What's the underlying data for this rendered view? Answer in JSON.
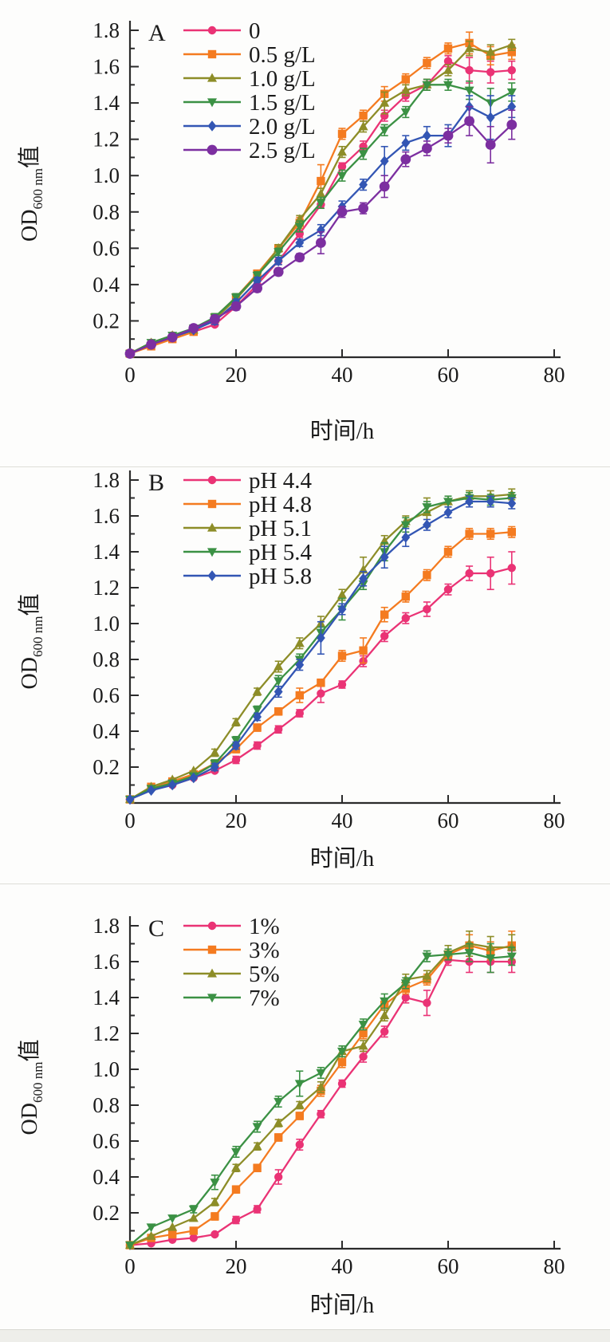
{
  "figure": {
    "type": "scientific-growth-curves",
    "x_label": "时间/h",
    "y_label_main": "OD",
    "y_label_sub": "600 nm",
    "y_label_tail": "值",
    "x_tick_labels": [
      "0",
      "20",
      "40",
      "60",
      "80"
    ],
    "y_tick_labels": [
      "0.2",
      "0.4",
      "0.6",
      "0.8",
      "1.0",
      "1.2",
      "1.4",
      "1.6",
      "1.8"
    ]
  },
  "colors": {
    "pink": "#ea3375",
    "orange": "#f47b20",
    "olive": "#8d8d28",
    "green": "#3b9144",
    "blue": "#3356b4",
    "purple": "#7c2fa0",
    "axis": "#2b2b2b"
  },
  "chart_data": [
    {
      "type": "line",
      "panel_label": "A",
      "xlabel": "时间/h",
      "ylabel": "OD600 nm值",
      "xlim": [
        0,
        80
      ],
      "ylim": [
        0,
        1.8
      ],
      "grid": false,
      "legend_position": "top-left-inside",
      "x": [
        0,
        4,
        8,
        12,
        16,
        20,
        24,
        28,
        32,
        36,
        40,
        44,
        48,
        52,
        56,
        60,
        64,
        68,
        72
      ],
      "series": [
        {
          "name": "0",
          "color": "#ea3375",
          "marker": "circle",
          "values": [
            0.02,
            0.08,
            0.12,
            0.14,
            0.18,
            0.28,
            0.4,
            0.53,
            0.68,
            0.84,
            1.05,
            1.16,
            1.33,
            1.44,
            1.5,
            1.63,
            1.58,
            1.57,
            1.58
          ],
          "err": [
            0.01,
            0.01,
            0.01,
            0.01,
            0.01,
            0.02,
            0.02,
            0.02,
            0.02,
            0.02,
            0.02,
            0.03,
            0.03,
            0.03,
            0.03,
            0.03,
            0.07,
            0.06,
            0.05
          ]
        },
        {
          "name": "0.5 g/L",
          "color": "#f47b20",
          "marker": "square",
          "values": [
            0.02,
            0.06,
            0.1,
            0.14,
            0.22,
            0.33,
            0.46,
            0.6,
            0.74,
            0.97,
            1.23,
            1.33,
            1.45,
            1.53,
            1.62,
            1.7,
            1.73,
            1.66,
            1.68
          ],
          "err": [
            0.01,
            0.01,
            0.01,
            0.01,
            0.02,
            0.02,
            0.02,
            0.02,
            0.03,
            0.09,
            0.03,
            0.03,
            0.04,
            0.03,
            0.03,
            0.03,
            0.06,
            0.05,
            0.04
          ]
        },
        {
          "name": "1.0 g/L",
          "color": "#8d8d28",
          "marker": "triangle-up",
          "values": [
            0.02,
            0.08,
            0.12,
            0.15,
            0.21,
            0.32,
            0.45,
            0.6,
            0.76,
            0.9,
            1.13,
            1.27,
            1.4,
            1.47,
            1.5,
            1.58,
            1.7,
            1.68,
            1.72
          ],
          "err": [
            0.01,
            0.01,
            0.01,
            0.01,
            0.02,
            0.02,
            0.02,
            0.02,
            0.02,
            0.03,
            0.03,
            0.03,
            0.06,
            0.03,
            0.03,
            0.03,
            0.04,
            0.04,
            0.03
          ]
        },
        {
          "name": "1.5 g/L",
          "color": "#3b9144",
          "marker": "triangle-down",
          "values": [
            0.02,
            0.08,
            0.12,
            0.16,
            0.22,
            0.33,
            0.45,
            0.58,
            0.72,
            0.85,
            1.0,
            1.12,
            1.25,
            1.35,
            1.5,
            1.5,
            1.47,
            1.4,
            1.46
          ],
          "err": [
            0.01,
            0.01,
            0.01,
            0.01,
            0.02,
            0.02,
            0.02,
            0.02,
            0.03,
            0.03,
            0.03,
            0.03,
            0.03,
            0.03,
            0.03,
            0.03,
            0.05,
            0.08,
            0.05
          ]
        },
        {
          "name": "2.0 g/L",
          "color": "#3356b4",
          "marker": "diamond",
          "values": [
            0.02,
            0.07,
            0.11,
            0.15,
            0.2,
            0.3,
            0.42,
            0.53,
            0.63,
            0.7,
            0.83,
            0.95,
            1.08,
            1.18,
            1.22,
            1.22,
            1.38,
            1.32,
            1.38
          ],
          "err": [
            0.01,
            0.01,
            0.01,
            0.01,
            0.02,
            0.02,
            0.02,
            0.02,
            0.02,
            0.03,
            0.03,
            0.03,
            0.08,
            0.04,
            0.05,
            0.06,
            0.06,
            0.12,
            0.06
          ]
        },
        {
          "name": "2.5 g/L",
          "color": "#7c2fa0",
          "marker": "circle-lg",
          "values": [
            0.02,
            0.07,
            0.11,
            0.16,
            0.21,
            0.28,
            0.38,
            0.47,
            0.55,
            0.63,
            0.8,
            0.82,
            0.94,
            1.09,
            1.15,
            1.22,
            1.3,
            1.17,
            1.28
          ],
          "err": [
            0.01,
            0.01,
            0.01,
            0.01,
            0.02,
            0.02,
            0.02,
            0.02,
            0.02,
            0.06,
            0.03,
            0.03,
            0.06,
            0.04,
            0.04,
            0.04,
            0.08,
            0.1,
            0.08
          ]
        }
      ]
    },
    {
      "type": "line",
      "panel_label": "B",
      "xlabel": "时间/h",
      "ylabel": "OD600 nm值",
      "xlim": [
        0,
        80
      ],
      "ylim": [
        0,
        1.8
      ],
      "grid": false,
      "legend_position": "top-left-inside",
      "x": [
        0,
        4,
        8,
        12,
        16,
        20,
        24,
        28,
        32,
        36,
        40,
        44,
        48,
        52,
        56,
        60,
        64,
        68,
        72
      ],
      "series": [
        {
          "name": "pH 4.4",
          "color": "#ea3375",
          "marker": "circle",
          "values": [
            0.02,
            0.08,
            0.1,
            0.14,
            0.18,
            0.24,
            0.32,
            0.41,
            0.5,
            0.61,
            0.66,
            0.79,
            0.93,
            1.03,
            1.08,
            1.19,
            1.28,
            1.28,
            1.31
          ],
          "err": [
            0.01,
            0.01,
            0.01,
            0.01,
            0.01,
            0.02,
            0.02,
            0.02,
            0.02,
            0.05,
            0.02,
            0.03,
            0.03,
            0.03,
            0.04,
            0.03,
            0.04,
            0.09,
            0.09
          ]
        },
        {
          "name": "pH 4.8",
          "color": "#f47b20",
          "marker": "square",
          "values": [
            0.02,
            0.09,
            0.12,
            0.16,
            0.22,
            0.3,
            0.42,
            0.51,
            0.6,
            0.67,
            0.82,
            0.85,
            1.05,
            1.15,
            1.27,
            1.4,
            1.5,
            1.5,
            1.51
          ],
          "err": [
            0.01,
            0.01,
            0.01,
            0.01,
            0.02,
            0.02,
            0.02,
            0.02,
            0.04,
            0.02,
            0.03,
            0.07,
            0.04,
            0.03,
            0.03,
            0.03,
            0.03,
            0.03,
            0.03
          ]
        },
        {
          "name": "pH 5.1",
          "color": "#8d8d28",
          "marker": "triangle-up",
          "values": [
            0.02,
            0.09,
            0.13,
            0.18,
            0.28,
            0.45,
            0.62,
            0.76,
            0.89,
            1.0,
            1.16,
            1.3,
            1.46,
            1.57,
            1.62,
            1.68,
            1.71,
            1.71,
            1.72
          ],
          "err": [
            0.01,
            0.01,
            0.01,
            0.01,
            0.02,
            0.02,
            0.02,
            0.03,
            0.03,
            0.04,
            0.03,
            0.07,
            0.03,
            0.03,
            0.08,
            0.03,
            0.03,
            0.03,
            0.03
          ]
        },
        {
          "name": "pH 5.4",
          "color": "#3b9144",
          "marker": "triangle-down",
          "values": [
            0.02,
            0.08,
            0.11,
            0.15,
            0.22,
            0.35,
            0.52,
            0.68,
            0.8,
            0.95,
            1.08,
            1.22,
            1.4,
            1.55,
            1.65,
            1.68,
            1.7,
            1.69,
            1.7
          ],
          "err": [
            0.01,
            0.01,
            0.01,
            0.01,
            0.02,
            0.02,
            0.02,
            0.03,
            0.03,
            0.03,
            0.06,
            0.03,
            0.05,
            0.04,
            0.03,
            0.03,
            0.03,
            0.03,
            0.03
          ]
        },
        {
          "name": "pH 5.8",
          "color": "#3356b4",
          "marker": "diamond",
          "values": [
            0.02,
            0.07,
            0.1,
            0.14,
            0.2,
            0.32,
            0.48,
            0.62,
            0.77,
            0.92,
            1.08,
            1.25,
            1.37,
            1.48,
            1.55,
            1.62,
            1.68,
            1.68,
            1.67
          ],
          "err": [
            0.01,
            0.01,
            0.01,
            0.01,
            0.02,
            0.02,
            0.02,
            0.03,
            0.03,
            0.09,
            0.03,
            0.04,
            0.06,
            0.05,
            0.03,
            0.03,
            0.03,
            0.03,
            0.03
          ]
        }
      ]
    },
    {
      "type": "line",
      "panel_label": "C",
      "xlabel": "时间/h",
      "ylabel": "OD600 nm值",
      "xlim": [
        0,
        80
      ],
      "ylim": [
        0,
        1.8
      ],
      "grid": false,
      "legend_position": "top-left-inside",
      "x": [
        0,
        4,
        8,
        12,
        16,
        20,
        24,
        28,
        32,
        36,
        40,
        44,
        48,
        52,
        56,
        60,
        64,
        68,
        72
      ],
      "series": [
        {
          "name": "1%",
          "color": "#ea3375",
          "marker": "circle",
          "values": [
            0.02,
            0.03,
            0.05,
            0.06,
            0.08,
            0.16,
            0.22,
            0.4,
            0.58,
            0.75,
            0.92,
            1.07,
            1.21,
            1.4,
            1.37,
            1.61,
            1.6,
            1.6,
            1.6
          ],
          "err": [
            0.01,
            0.01,
            0.01,
            0.01,
            0.01,
            0.02,
            0.02,
            0.04,
            0.03,
            0.02,
            0.02,
            0.03,
            0.03,
            0.03,
            0.07,
            0.03,
            0.06,
            0.06,
            0.06
          ]
        },
        {
          "name": "3%",
          "color": "#f47b20",
          "marker": "square",
          "values": [
            0.02,
            0.06,
            0.08,
            0.1,
            0.18,
            0.33,
            0.45,
            0.62,
            0.74,
            0.88,
            1.04,
            1.2,
            1.36,
            1.45,
            1.5,
            1.64,
            1.69,
            1.66,
            1.69
          ],
          "err": [
            0.01,
            0.01,
            0.01,
            0.01,
            0.02,
            0.02,
            0.02,
            0.02,
            0.02,
            0.03,
            0.03,
            0.03,
            0.03,
            0.03,
            0.03,
            0.03,
            0.06,
            0.05,
            0.08
          ]
        },
        {
          "name": "5%",
          "color": "#8d8d28",
          "marker": "triangle-up",
          "values": [
            0.02,
            0.07,
            0.12,
            0.17,
            0.26,
            0.45,
            0.57,
            0.7,
            0.8,
            0.9,
            1.1,
            1.13,
            1.3,
            1.5,
            1.52,
            1.65,
            1.7,
            1.68,
            1.68
          ],
          "err": [
            0.01,
            0.01,
            0.01,
            0.01,
            0.02,
            0.02,
            0.02,
            0.02,
            0.02,
            0.03,
            0.03,
            0.03,
            0.03,
            0.03,
            0.03,
            0.04,
            0.07,
            0.06,
            0.07
          ]
        },
        {
          "name": "7%",
          "color": "#3b9144",
          "marker": "triangle-down",
          "values": [
            0.02,
            0.12,
            0.17,
            0.22,
            0.37,
            0.54,
            0.68,
            0.82,
            0.92,
            0.98,
            1.1,
            1.25,
            1.38,
            1.48,
            1.63,
            1.64,
            1.65,
            1.62,
            1.63
          ],
          "err": [
            0.01,
            0.01,
            0.01,
            0.02,
            0.04,
            0.03,
            0.03,
            0.03,
            0.07,
            0.03,
            0.03,
            0.03,
            0.04,
            0.03,
            0.03,
            0.03,
            0.05,
            0.08,
            0.05
          ]
        }
      ]
    }
  ]
}
